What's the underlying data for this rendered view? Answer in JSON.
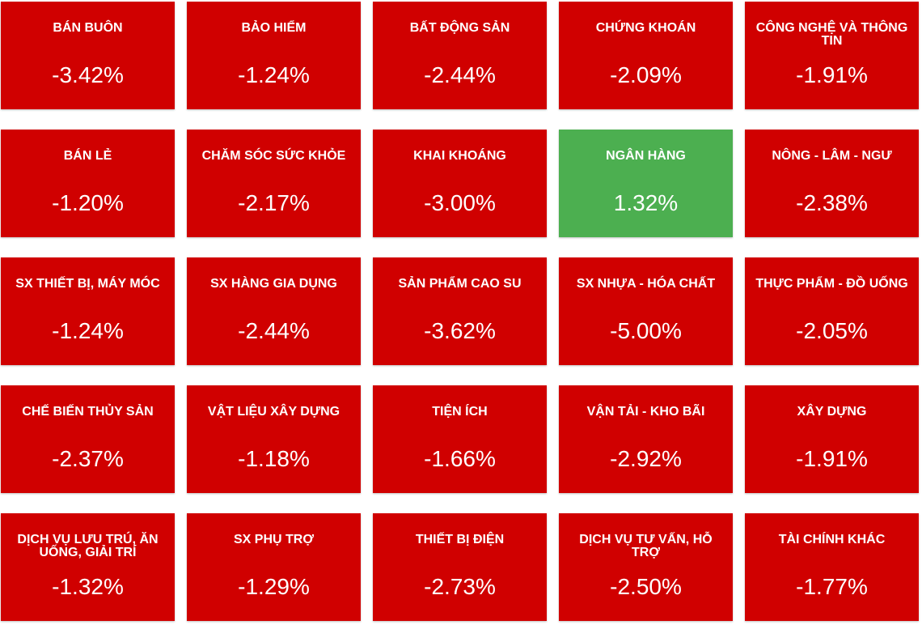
{
  "colors": {
    "negative": "#d00000",
    "positive": "#4caf50",
    "text": "#ffffff",
    "background": "#ffffff"
  },
  "sectors": [
    {
      "name": "BÁN BUÔN",
      "change": "-3.42%",
      "direction": "down"
    },
    {
      "name": "BẢO HIỂM",
      "change": "-1.24%",
      "direction": "down"
    },
    {
      "name": "BẤT ĐỘNG SẢN",
      "change": "-2.44%",
      "direction": "down"
    },
    {
      "name": "CHỨNG KHOÁN",
      "change": "-2.09%",
      "direction": "down"
    },
    {
      "name": "CÔNG NGHỆ VÀ THÔNG TIN",
      "change": "-1.91%",
      "direction": "down"
    },
    {
      "name": "BÁN LẺ",
      "change": "-1.20%",
      "direction": "down"
    },
    {
      "name": "CHĂM SÓC SỨC KHỎE",
      "change": "-2.17%",
      "direction": "down"
    },
    {
      "name": "KHAI KHOÁNG",
      "change": "-3.00%",
      "direction": "down"
    },
    {
      "name": "NGÂN HÀNG",
      "change": "1.32%",
      "direction": "up"
    },
    {
      "name": "NÔNG - LÂM - NGƯ",
      "change": "-2.38%",
      "direction": "down"
    },
    {
      "name": "SX THIẾT BỊ, MÁY MÓC",
      "change": "-1.24%",
      "direction": "down"
    },
    {
      "name": "SX HÀNG GIA DỤNG",
      "change": "-2.44%",
      "direction": "down"
    },
    {
      "name": "SẢN PHẨM CAO SU",
      "change": "-3.62%",
      "direction": "down"
    },
    {
      "name": "SX NHỰA - HÓA CHẤT",
      "change": "-5.00%",
      "direction": "down"
    },
    {
      "name": "THỰC PHẨM - ĐỒ UỐNG",
      "change": "-2.05%",
      "direction": "down"
    },
    {
      "name": "CHẾ BIẾN THỦY SẢN",
      "change": "-2.37%",
      "direction": "down"
    },
    {
      "name": "VẬT LIỆU XÂY DỰNG",
      "change": "-1.18%",
      "direction": "down"
    },
    {
      "name": "TIỆN ÍCH",
      "change": "-1.66%",
      "direction": "down"
    },
    {
      "name": "VẬN TẢI - KHO BÃI",
      "change": "-2.92%",
      "direction": "down"
    },
    {
      "name": "XÂY DỰNG",
      "change": "-1.91%",
      "direction": "down"
    },
    {
      "name": "DỊCH VỤ LƯU TRÚ, ĂN UỐNG, GIẢI TRÍ",
      "change": "-1.32%",
      "direction": "down"
    },
    {
      "name": "SX PHỤ TRỢ",
      "change": "-1.29%",
      "direction": "down"
    },
    {
      "name": "THIẾT BỊ ĐIỆN",
      "change": "-2.73%",
      "direction": "down"
    },
    {
      "name": "DỊCH VỤ TƯ VẤN, HỖ TRỢ",
      "change": "-2.50%",
      "direction": "down"
    },
    {
      "name": "TÀI CHÍNH KHÁC",
      "change": "-1.77%",
      "direction": "down"
    }
  ]
}
